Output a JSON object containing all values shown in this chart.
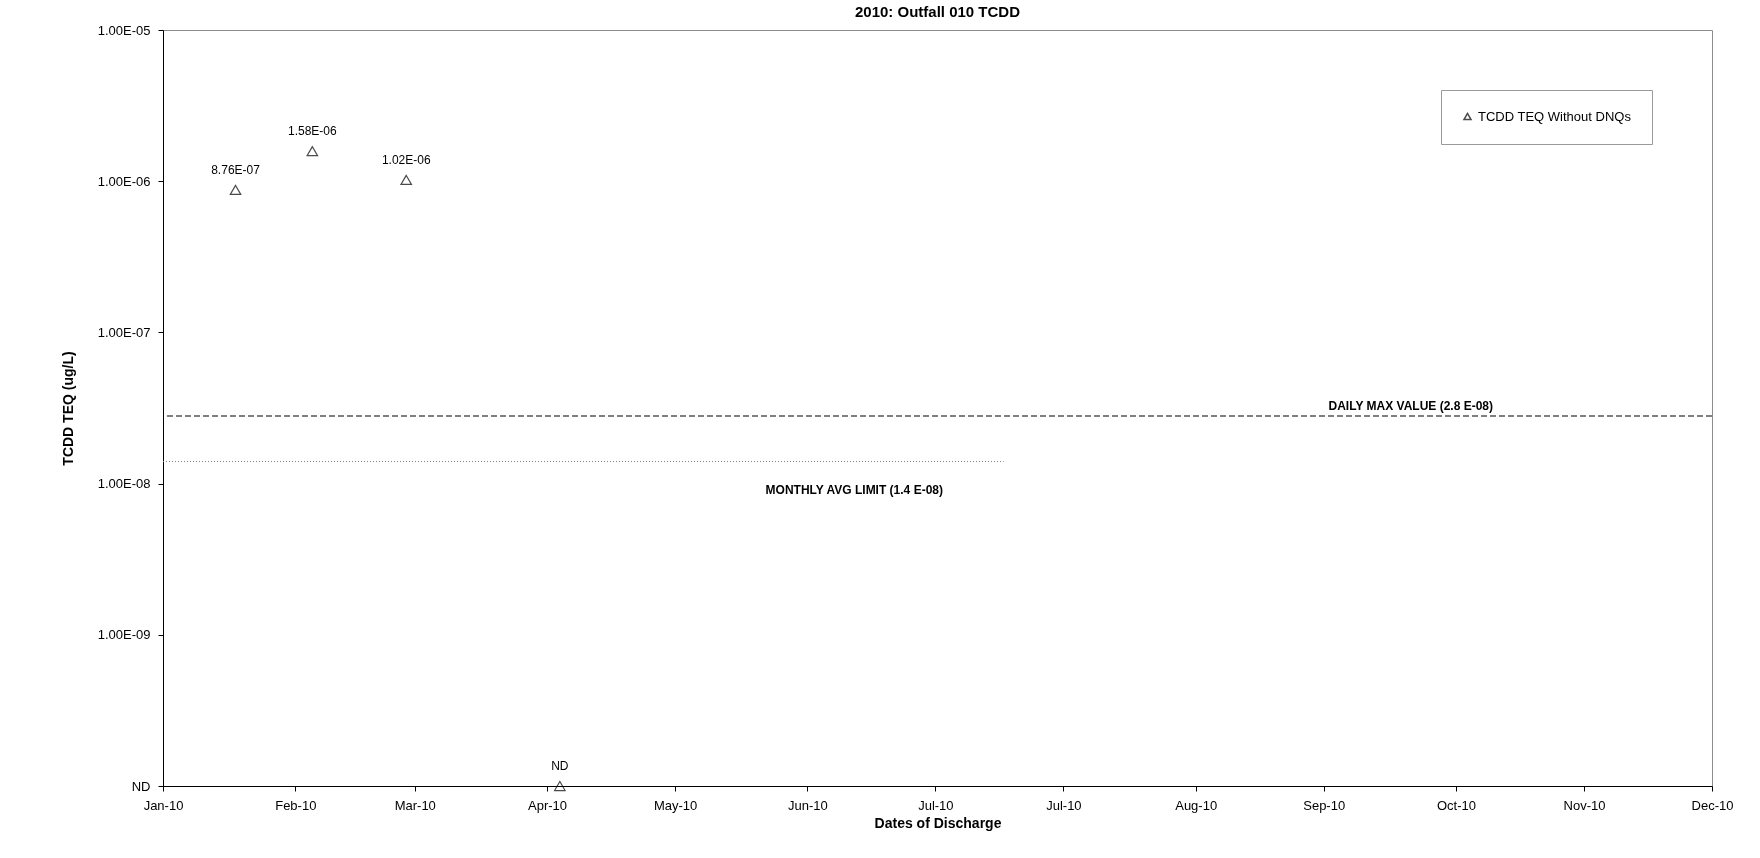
{
  "chart_data": {
    "type": "scatter",
    "title": "2010: Outfall 010 TCDD",
    "xlabel": "Dates of Discharge",
    "ylabel": "TCDD TEQ (ug/L)",
    "log": "y",
    "grid": false,
    "legend": "top right",
    "marker": "triangle",
    "xlim": [
      "2010-01-01",
      "2010-12-30"
    ],
    "xticks": [
      {
        "value": "2010-01-01",
        "label": "Jan-10"
      },
      {
        "value": "2010-02-01",
        "label": "Feb-10"
      },
      {
        "value": "2010-03-01",
        "label": "Mar-10"
      },
      {
        "value": "2010-04-01",
        "label": "Apr-10"
      },
      {
        "value": "2010-05-01",
        "label": "May-10"
      },
      {
        "value": "2010-06-01",
        "label": "Jun-10"
      },
      {
        "value": "2010-07-01",
        "label": "Jul-10"
      },
      {
        "value": "2010-07-31",
        "label": "Jul-10"
      },
      {
        "value": "2010-08-31",
        "label": "Aug-10"
      },
      {
        "value": "2010-09-30",
        "label": "Sep-10"
      },
      {
        "value": "2010-10-31",
        "label": "Oct-10"
      },
      {
        "value": "2010-11-30",
        "label": "Nov-10"
      },
      {
        "value": "2010-12-30",
        "label": "Dec-10"
      }
    ],
    "ylim": [
      1e-10,
      1e-05
    ],
    "yticks": [
      {
        "value": 1e-10,
        "label": "ND"
      },
      {
        "value": 1e-09,
        "label": "1.00E-09"
      },
      {
        "value": 1e-08,
        "label": "1.00E-08"
      },
      {
        "value": 1e-07,
        "label": "1.00E-07"
      },
      {
        "value": 1e-06,
        "label": "1.00E-06"
      },
      {
        "value": 1e-05,
        "label": "1.00E-05"
      }
    ],
    "series": [
      {
        "name": "TCDD TEQ Without DNQs",
        "color": "#000000",
        "x": [
          "2010-01-18",
          "2010-02-05",
          "2010-02-27",
          "2010-04-04"
        ],
        "values": [
          8.76e-07,
          1.58e-06,
          1.02e-06,
          1e-10
        ],
        "value_labels": [
          "8.76E-07",
          "1.58E-06",
          "1.02E-06",
          "ND"
        ]
      },
      {
        "type": "line",
        "color": "#808080",
        "line_style": "dotted",
        "marker": "none",
        "x": [
          "2010-01-01",
          "2010-07-17"
        ],
        "values": [
          1.4e-08,
          1.4e-08
        ]
      }
    ],
    "ref_lines": [
      {
        "axis": "y",
        "value": 2.8e-08,
        "label": "DAILY MAX VALUE (2.8 E-08)",
        "color": "#000000",
        "line_style": "dashed"
      }
    ],
    "annotations": [
      {
        "text": "MONTHLY AVG LIMIT (1.4 E-08)",
        "x": "2010-06-12",
        "y": 1.4e-08
      }
    ]
  }
}
